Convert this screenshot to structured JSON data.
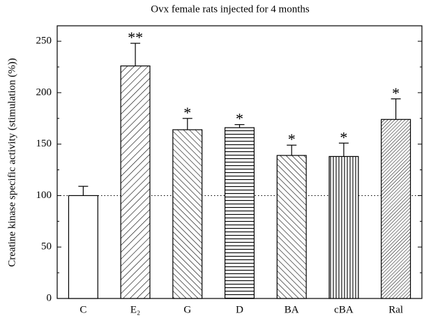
{
  "chart_data": {
    "type": "bar",
    "title": "Ovx female rats injected for 4 months",
    "y_label": "Creatine kinase specific activity (stimulation (%))",
    "categories": [
      "C",
      "E₂",
      "G",
      "D",
      "BA",
      "cBA",
      "Ral"
    ],
    "values": [
      100,
      226,
      164,
      166,
      139,
      138,
      174
    ],
    "errors": [
      9,
      22,
      11,
      3,
      10,
      13,
      20
    ],
    "significance": [
      null,
      "**",
      "*",
      "*",
      "*",
      "*",
      "*"
    ],
    "hatch": [
      "none",
      "forward",
      "back",
      "horizontal",
      "back",
      "vertical",
      "forward-dense"
    ],
    "color": "#000000",
    "reference_line": 100,
    "ylim": [
      0,
      265
    ],
    "yticks": [
      0,
      50,
      100,
      150,
      200,
      250
    ],
    "minor_yticks": [
      25,
      75,
      125,
      175,
      225
    ]
  }
}
